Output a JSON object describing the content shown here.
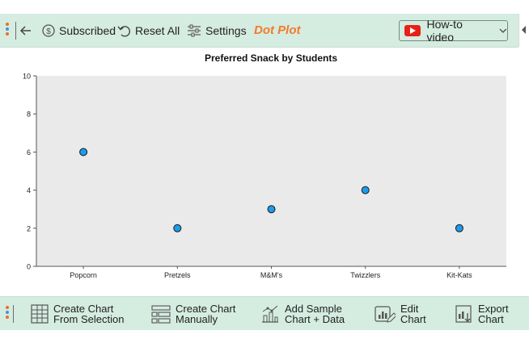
{
  "toolbar": {
    "subscribed_label": "Subscribed",
    "reset_label": "Reset All",
    "settings_label": "Settings",
    "chart_type_label": "Dot Plot",
    "howto_label": "How-to video"
  },
  "bottom_toolbar": {
    "create_from_selection": "Create Chart\nFrom Selection",
    "create_manually": "Create Chart\nManually",
    "add_sample": "Add Sample\nChart + Data",
    "edit_chart": "Edit\nChart",
    "export_chart": "Export\nChart"
  },
  "colors": {
    "accent_orange": "#f37b2a",
    "toolbar_bg": "#d5ece1",
    "dot_fill": "#1e9be9",
    "plot_bg": "#eaeaea"
  },
  "chart_data": {
    "type": "scatter",
    "title": "Preferred Snack by Students",
    "xlabel": "",
    "ylabel": "",
    "categories": [
      "Popcorn",
      "Pretzels",
      "M&M's",
      "Twizzlers",
      "Kit-Kats"
    ],
    "values": [
      6,
      2,
      3,
      4,
      2
    ],
    "ylim": [
      0,
      10
    ],
    "yticks": [
      0,
      2,
      4,
      6,
      8,
      10
    ],
    "grid": false,
    "legend": "none"
  }
}
